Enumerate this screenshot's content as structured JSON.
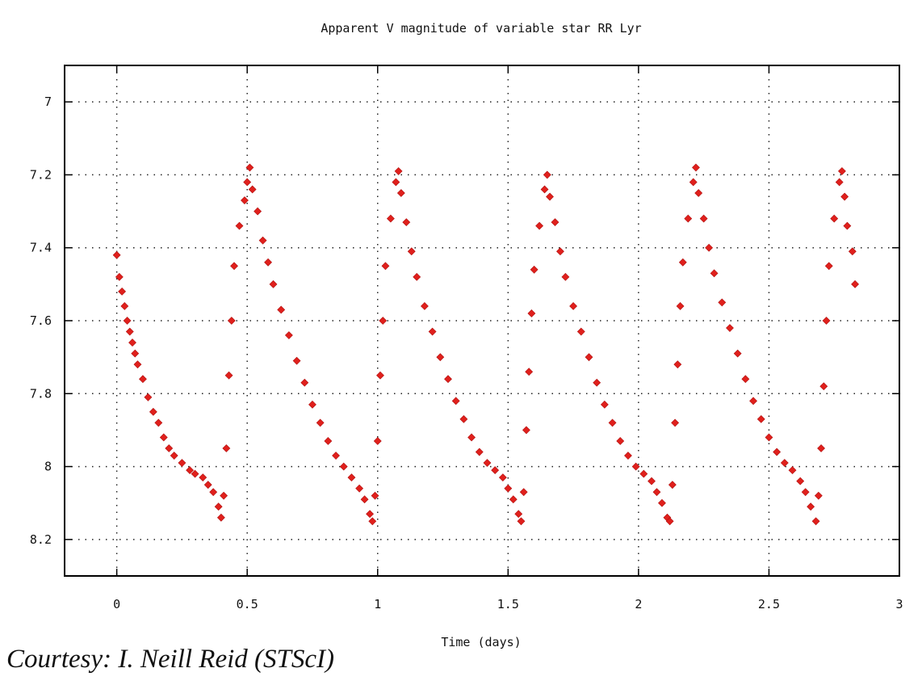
{
  "chart_data": {
    "type": "scatter",
    "title": "Apparent V magnitude of variable star RR Lyr",
    "xlabel": "Time (days)",
    "ylabel": "",
    "xlim": [
      -0.2,
      3
    ],
    "ylim": [
      6.9,
      8.3
    ],
    "y_inverted": true,
    "x_ticks": [
      0,
      0.5,
      1,
      1.5,
      2,
      2.5,
      3
    ],
    "y_ticks": [
      7,
      7.2,
      7.4,
      7.6,
      7.8,
      8,
      8.2
    ],
    "x_tick_labels": [
      "0",
      "0.5",
      "1",
      "1.5",
      "2",
      "2.5",
      "3"
    ],
    "y_tick_labels": [
      "7",
      "7.2",
      "7.4",
      "7.6",
      "7.8",
      "8",
      "8.2"
    ],
    "grid": true,
    "marker": "diamond",
    "color": "#e0201c",
    "series": [
      {
        "points": [
          [
            0.0,
            7.42
          ],
          [
            0.01,
            7.48
          ],
          [
            0.02,
            7.52
          ],
          [
            0.03,
            7.56
          ],
          [
            0.04,
            7.6
          ],
          [
            0.05,
            7.63
          ],
          [
            0.06,
            7.66
          ],
          [
            0.07,
            7.69
          ],
          [
            0.08,
            7.72
          ],
          [
            0.1,
            7.76
          ],
          [
            0.12,
            7.81
          ],
          [
            0.14,
            7.85
          ],
          [
            0.16,
            7.88
          ],
          [
            0.18,
            7.92
          ],
          [
            0.2,
            7.95
          ],
          [
            0.22,
            7.97
          ],
          [
            0.25,
            7.99
          ],
          [
            0.28,
            8.01
          ],
          [
            0.3,
            8.02
          ],
          [
            0.33,
            8.03
          ],
          [
            0.35,
            8.05
          ],
          [
            0.37,
            8.07
          ],
          [
            0.39,
            8.11
          ],
          [
            0.4,
            8.14
          ],
          [
            0.41,
            8.08
          ],
          [
            0.42,
            7.95
          ],
          [
            0.43,
            7.75
          ],
          [
            0.44,
            7.6
          ],
          [
            0.45,
            7.45
          ],
          [
            0.47,
            7.34
          ],
          [
            0.49,
            7.27
          ],
          [
            0.5,
            7.22
          ],
          [
            0.51,
            7.18
          ],
          [
            0.52,
            7.24
          ],
          [
            0.54,
            7.3
          ],
          [
            0.56,
            7.38
          ],
          [
            0.58,
            7.44
          ],
          [
            0.6,
            7.5
          ],
          [
            0.63,
            7.57
          ],
          [
            0.66,
            7.64
          ],
          [
            0.69,
            7.71
          ],
          [
            0.72,
            7.77
          ],
          [
            0.75,
            7.83
          ],
          [
            0.78,
            7.88
          ],
          [
            0.81,
            7.93
          ],
          [
            0.84,
            7.97
          ],
          [
            0.87,
            8.0
          ],
          [
            0.9,
            8.03
          ],
          [
            0.93,
            8.06
          ],
          [
            0.95,
            8.09
          ],
          [
            0.97,
            8.13
          ],
          [
            0.98,
            8.15
          ],
          [
            0.99,
            8.08
          ],
          [
            1.0,
            7.93
          ],
          [
            1.01,
            7.75
          ],
          [
            1.02,
            7.6
          ],
          [
            1.03,
            7.45
          ],
          [
            1.05,
            7.32
          ],
          [
            1.07,
            7.22
          ],
          [
            1.08,
            7.19
          ],
          [
            1.09,
            7.25
          ],
          [
            1.11,
            7.33
          ],
          [
            1.13,
            7.41
          ],
          [
            1.15,
            7.48
          ],
          [
            1.18,
            7.56
          ],
          [
            1.21,
            7.63
          ],
          [
            1.24,
            7.7
          ],
          [
            1.27,
            7.76
          ],
          [
            1.3,
            7.82
          ],
          [
            1.33,
            7.87
          ],
          [
            1.36,
            7.92
          ],
          [
            1.39,
            7.96
          ],
          [
            1.42,
            7.99
          ],
          [
            1.45,
            8.01
          ],
          [
            1.48,
            8.03
          ],
          [
            1.5,
            8.06
          ],
          [
            1.52,
            8.09
          ],
          [
            1.54,
            8.13
          ],
          [
            1.55,
            8.15
          ],
          [
            1.56,
            8.07
          ],
          [
            1.57,
            7.9
          ],
          [
            1.58,
            7.74
          ],
          [
            1.59,
            7.58
          ],
          [
            1.6,
            7.46
          ],
          [
            1.62,
            7.34
          ],
          [
            1.64,
            7.24
          ],
          [
            1.65,
            7.2
          ],
          [
            1.66,
            7.26
          ],
          [
            1.68,
            7.33
          ],
          [
            1.7,
            7.41
          ],
          [
            1.72,
            7.48
          ],
          [
            1.75,
            7.56
          ],
          [
            1.78,
            7.63
          ],
          [
            1.81,
            7.7
          ],
          [
            1.84,
            7.77
          ],
          [
            1.87,
            7.83
          ],
          [
            1.9,
            7.88
          ],
          [
            1.93,
            7.93
          ],
          [
            1.96,
            7.97
          ],
          [
            1.99,
            8.0
          ],
          [
            2.02,
            8.02
          ],
          [
            2.05,
            8.04
          ],
          [
            2.07,
            8.07
          ],
          [
            2.09,
            8.1
          ],
          [
            2.11,
            8.14
          ],
          [
            2.12,
            8.15
          ],
          [
            2.13,
            8.05
          ],
          [
            2.14,
            7.88
          ],
          [
            2.15,
            7.72
          ],
          [
            2.16,
            7.56
          ],
          [
            2.17,
            7.44
          ],
          [
            2.19,
            7.32
          ],
          [
            2.21,
            7.22
          ],
          [
            2.22,
            7.18
          ],
          [
            2.23,
            7.25
          ],
          [
            2.25,
            7.32
          ],
          [
            2.27,
            7.4
          ],
          [
            2.29,
            7.47
          ],
          [
            2.32,
            7.55
          ],
          [
            2.35,
            7.62
          ],
          [
            2.38,
            7.69
          ],
          [
            2.41,
            7.76
          ],
          [
            2.44,
            7.82
          ],
          [
            2.47,
            7.87
          ],
          [
            2.5,
            7.92
          ],
          [
            2.53,
            7.96
          ],
          [
            2.56,
            7.99
          ],
          [
            2.59,
            8.01
          ],
          [
            2.62,
            8.04
          ],
          [
            2.64,
            8.07
          ],
          [
            2.66,
            8.11
          ],
          [
            2.68,
            8.15
          ],
          [
            2.69,
            8.08
          ],
          [
            2.7,
            7.95
          ],
          [
            2.71,
            7.78
          ],
          [
            2.72,
            7.6
          ],
          [
            2.73,
            7.45
          ],
          [
            2.75,
            7.32
          ],
          [
            2.77,
            7.22
          ],
          [
            2.78,
            7.19
          ],
          [
            2.79,
            7.26
          ],
          [
            2.8,
            7.34
          ],
          [
            2.82,
            7.41
          ],
          [
            2.83,
            7.5
          ]
        ]
      }
    ]
  },
  "credit": "Courtesy: I. Neill Reid (STScI)"
}
